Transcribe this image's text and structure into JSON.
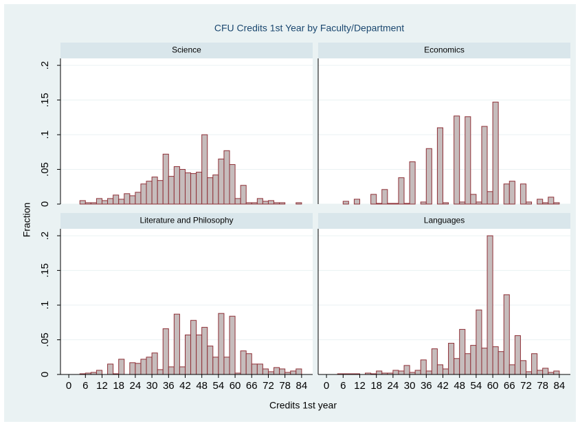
{
  "title": "CFU Credits 1st Year by Faculty/Department",
  "x_label": "Credits 1st year",
  "y_label": "Fraction",
  "xlim": [
    -3,
    88
  ],
  "xticks": [
    0,
    6,
    12,
    18,
    24,
    30,
    36,
    42,
    48,
    54,
    60,
    66,
    72,
    78,
    84
  ],
  "ylim": [
    0,
    0.21
  ],
  "yticks": [
    0,
    {
      "value": 0.05,
      "label": ".05"
    },
    {
      "value": 0.1,
      "label": ".1"
    },
    {
      "value": 0.15,
      "label": ".15"
    },
    {
      "value": 0.2,
      "label": ".2"
    }
  ],
  "grid": true,
  "chart_data": [
    {
      "type": "histogram",
      "title": "Science",
      "color": "#c6bcbc",
      "edge_color": "#8e2f36",
      "bins": [
        4,
        6,
        8,
        10,
        12,
        14,
        16,
        18,
        20,
        22,
        24,
        26,
        28,
        30,
        32,
        34,
        36,
        38,
        40,
        42,
        44,
        46,
        48,
        50,
        52,
        54,
        56,
        58,
        60,
        62,
        64,
        66,
        68,
        70,
        72,
        74,
        76,
        78,
        80,
        82,
        84
      ],
      "values": [
        0.005,
        0.002,
        0.002,
        0.008,
        0.005,
        0.008,
        0.013,
        0.007,
        0.015,
        0.012,
        0.017,
        0.029,
        0.033,
        0.039,
        0.034,
        0.072,
        0.04,
        0.054,
        0.05,
        0.045,
        0.044,
        0.046,
        0.1,
        0.038,
        0.042,
        0.065,
        0.077,
        0.057,
        0.008,
        0.027,
        0.002,
        0.002,
        0.008,
        0.004,
        0.005,
        0.002,
        0.002,
        0,
        0,
        0.002
      ]
    },
    {
      "type": "histogram",
      "title": "Economics",
      "color": "#c6bcbc",
      "edge_color": "#8e2f36",
      "bins": [
        4,
        6,
        8,
        10,
        12,
        14,
        16,
        18,
        20,
        22,
        24,
        26,
        28,
        30,
        32,
        34,
        36,
        38,
        40,
        42,
        44,
        46,
        48,
        50,
        52,
        54,
        56,
        58,
        60,
        62,
        64,
        66,
        68,
        70,
        72,
        74,
        76,
        78,
        80,
        82,
        84
      ],
      "values": [
        0,
        0.004,
        0,
        0.007,
        0,
        0,
        0.014,
        0.001,
        0.021,
        0.001,
        0.001,
        0.038,
        0.001,
        0.061,
        0,
        0.003,
        0.08,
        0,
        0.11,
        0.002,
        0,
        0.127,
        0.003,
        0.126,
        0.014,
        0.003,
        0.112,
        0.018,
        0.147,
        0,
        0.029,
        0.033,
        0,
        0.029,
        0.003,
        0,
        0.007,
        0.002,
        0.01,
        0.002
      ]
    },
    {
      "type": "histogram",
      "title": "Literature and Philosophy",
      "color": "#c6bcbc",
      "edge_color": "#8e2f36",
      "bins": [
        4,
        6,
        8,
        10,
        12,
        14,
        16,
        18,
        20,
        22,
        24,
        26,
        28,
        30,
        32,
        34,
        36,
        38,
        40,
        42,
        44,
        46,
        48,
        50,
        52,
        54,
        56,
        58,
        60,
        62,
        64,
        66,
        68,
        70,
        72,
        74,
        76,
        78,
        80,
        82,
        84
      ],
      "values": [
        0.001,
        0.002,
        0.003,
        0.006,
        0,
        0.015,
        0.001,
        0.022,
        0,
        0.017,
        0.016,
        0.022,
        0.025,
        0.031,
        0.007,
        0.066,
        0.011,
        0.087,
        0.011,
        0.057,
        0.078,
        0.057,
        0.068,
        0.041,
        0.025,
        0.088,
        0.025,
        0.084,
        0.002,
        0.034,
        0.03,
        0.015,
        0.015,
        0.008,
        0.004,
        0.01,
        0.008,
        0.003,
        0.005,
        0.008
      ]
    },
    {
      "type": "histogram",
      "title": "Languages",
      "color": "#c6bcbc",
      "edge_color": "#8e2f36",
      "bins": [
        4,
        6,
        8,
        10,
        12,
        14,
        16,
        18,
        20,
        22,
        24,
        26,
        28,
        30,
        32,
        34,
        36,
        38,
        40,
        42,
        44,
        46,
        48,
        50,
        52,
        54,
        56,
        58,
        60,
        62,
        64,
        66,
        68,
        70,
        72,
        74,
        76,
        78,
        80,
        82,
        84
      ],
      "values": [
        0.001,
        0.001,
        0.001,
        0.001,
        0,
        0.002,
        0.001,
        0.005,
        0.002,
        0.002,
        0.006,
        0.005,
        0.013,
        0.003,
        0.006,
        0.021,
        0.005,
        0.037,
        0.014,
        0.008,
        0.045,
        0.023,
        0.065,
        0.03,
        0.042,
        0.093,
        0.038,
        0.2,
        0.04,
        0.033,
        0.115,
        0.014,
        0.056,
        0.02,
        0.004,
        0.03,
        0.006,
        0.009,
        0.003,
        0.005
      ]
    }
  ]
}
